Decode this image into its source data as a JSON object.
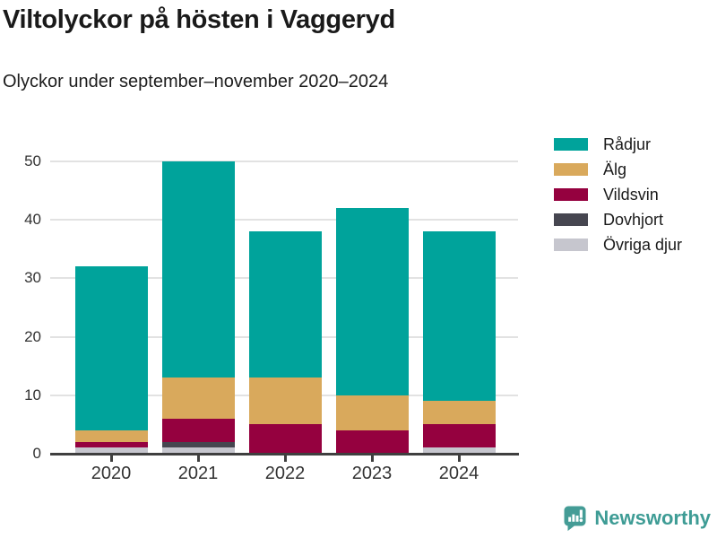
{
  "title": "Viltolyckor på hösten i Vaggeryd",
  "subtitle": "Olyckor under september–november 2020–2024",
  "chart_data": {
    "type": "bar",
    "stacked": true,
    "title": "Viltolyckor på hösten i Vaggeryd",
    "subtitle": "Olyckor under september–november 2020–2024",
    "categories": [
      "2020",
      "2021",
      "2022",
      "2023",
      "2024"
    ],
    "series": [
      {
        "name": "Rådjur",
        "color": "#00a39b",
        "values": [
          28,
          37,
          25,
          32,
          29
        ]
      },
      {
        "name": "Älg",
        "color": "#d9a95c",
        "values": [
          2,
          7,
          8,
          6,
          4
        ]
      },
      {
        "name": "Vildsvin",
        "color": "#95013f",
        "values": [
          1,
          4,
          5,
          4,
          4
        ]
      },
      {
        "name": "Dovhjort",
        "color": "#464650",
        "values": [
          0,
          1,
          0,
          0,
          0
        ]
      },
      {
        "name": "Övriga djur",
        "color": "#c6c6ce",
        "values": [
          1,
          1,
          0,
          0,
          1
        ]
      }
    ],
    "stack_order_bottom_to_top": [
      "Övriga djur",
      "Dovhjort",
      "Vildsvin",
      "Älg",
      "Rådjur"
    ],
    "totals": [
      32,
      50,
      38,
      42,
      38
    ],
    "xlabel": "",
    "ylabel": "",
    "ylim": [
      0,
      50
    ],
    "yticks": [
      0,
      10,
      20,
      30,
      40,
      50
    ],
    "grid": true,
    "legend_position": "right",
    "colors": {
      "gridline": "#e2e2e2",
      "axis": "#3f3f3f",
      "tick_text": "#333333"
    }
  },
  "footer": {
    "brand": "Newsworthy",
    "brand_color": "#3e9c95",
    "logo_icon": "bar-chart-speech-bubble-icon"
  }
}
